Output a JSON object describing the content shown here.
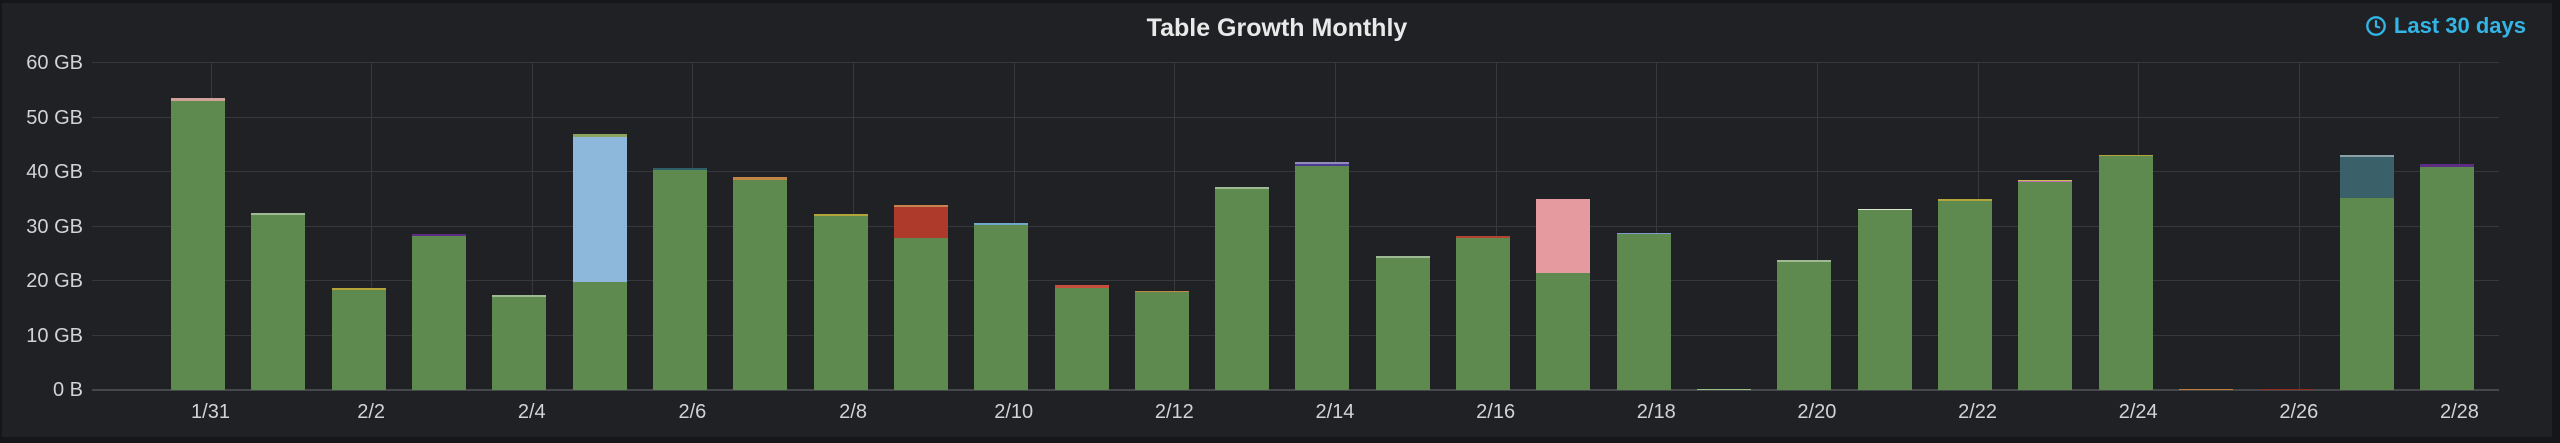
{
  "panel": {
    "title": "Table Growth Monthly"
  },
  "timepicker": {
    "label": "Last 30 days",
    "icon": "clock-icon",
    "color": "#33b5e5"
  },
  "chart_data": {
    "type": "bar",
    "stacked": true,
    "title": "Table Growth Monthly",
    "xlabel": "",
    "ylabel": "",
    "unit": "bytes",
    "ylim": [
      0,
      60
    ],
    "grid": true,
    "legend_position": "none",
    "y_ticks": [
      {
        "value": 0,
        "label": "0 B"
      },
      {
        "value": 10,
        "label": "10 GB"
      },
      {
        "value": 20,
        "label": "20 GB"
      },
      {
        "value": 30,
        "label": "30 GB"
      },
      {
        "value": 40,
        "label": "40 GB"
      },
      {
        "value": 50,
        "label": "50 GB"
      },
      {
        "value": 60,
        "label": "60 GB"
      }
    ],
    "x_tick_labels": [
      "1/31",
      "2/2",
      "2/4",
      "2/6",
      "2/8",
      "2/10",
      "2/12",
      "2/14",
      "2/16",
      "2/18",
      "2/20",
      "2/22",
      "2/24",
      "2/26",
      "2/28"
    ],
    "series_colors": {
      "green": "#5f8a4f",
      "sky_blue": "#8db8dc",
      "red": "#ae3a2c",
      "pink": "#e59aa0",
      "dark_teal": "#3a606a",
      "yellow": "#b3a33b",
      "orange": "#c08547",
      "purple": "#5c2d82",
      "indigo": "#4b3d8f",
      "salmon": "#c94f3d",
      "periwinkle": "#7e9cc9",
      "light_green": "#9cbf85",
      "olive": "#8da45f",
      "magenta": "#bd6cb3",
      "cream": "#d9e8cf",
      "dark_red": "#8e2d20",
      "tan_pink": "#cfa198"
    },
    "bars": [
      {
        "date": "1/31",
        "total_gb": 53.5,
        "segments": [
          {
            "color": "#5f8a4f",
            "gb": 53.0
          },
          {
            "color": "#cfa198",
            "gb": 0.5
          }
        ]
      },
      {
        "date": "2/1",
        "total_gb": 32.5,
        "segments": [
          {
            "color": "#5f8a4f",
            "gb": 32.5
          }
        ]
      },
      {
        "date": "2/2",
        "total_gb": 18.8,
        "segments": [
          {
            "color": "#5f8a4f",
            "gb": 18.4
          },
          {
            "color": "#b3a33b",
            "gb": 0.4
          }
        ]
      },
      {
        "date": "2/3",
        "total_gb": 28.7,
        "segments": [
          {
            "color": "#5f8a4f",
            "gb": 28.3
          },
          {
            "color": "#5c2d82",
            "gb": 0.4
          }
        ]
      },
      {
        "date": "2/4",
        "total_gb": 17.5,
        "segments": [
          {
            "color": "#5f8a4f",
            "gb": 17.5
          }
        ]
      },
      {
        "date": "2/5",
        "total_gb": 46.95,
        "segments": [
          {
            "color": "#5f8a4f",
            "gb": 19.9
          },
          {
            "color": "#8db8dc",
            "gb": 26.6
          },
          {
            "color": "#8da45f",
            "gb": 0.45
          }
        ]
      },
      {
        "date": "2/6",
        "total_gb": 40.7,
        "segments": [
          {
            "color": "#5f8a4f",
            "gb": 40.3
          },
          {
            "color": "#2f5f66",
            "gb": 0.4
          }
        ]
      },
      {
        "date": "2/7",
        "total_gb": 39.0,
        "segments": [
          {
            "color": "#5f8a4f",
            "gb": 38.6
          },
          {
            "color": "#c08547",
            "gb": 0.4
          }
        ]
      },
      {
        "date": "2/8",
        "total_gb": 32.3,
        "segments": [
          {
            "color": "#5f8a4f",
            "gb": 32.0
          },
          {
            "color": "#b3a33b",
            "gb": 0.3
          }
        ]
      },
      {
        "date": "2/9",
        "total_gb": 34.0,
        "segments": [
          {
            "color": "#5f8a4f",
            "gb": 27.9
          },
          {
            "color": "#ae3a2c",
            "gb": 5.7
          },
          {
            "color": "#c9834e",
            "gb": 0.4
          }
        ]
      },
      {
        "date": "2/10",
        "total_gb": 30.6,
        "segments": [
          {
            "color": "#5f8a4f",
            "gb": 30.3
          },
          {
            "color": "#6fa8c9",
            "gb": 0.3
          }
        ]
      },
      {
        "date": "2/11",
        "total_gb": 19.2,
        "segments": [
          {
            "color": "#5f8a4f",
            "gb": 18.7
          },
          {
            "color": "#c94f3d",
            "gb": 0.5
          }
        ]
      },
      {
        "date": "2/12",
        "total_gb": 18.2,
        "segments": [
          {
            "color": "#5f8a4f",
            "gb": 17.95
          },
          {
            "color": "#c08547",
            "gb": 0.25
          }
        ]
      },
      {
        "date": "2/13",
        "total_gb": 37.3,
        "segments": [
          {
            "color": "#5f8a4f",
            "gb": 37.3
          }
        ]
      },
      {
        "date": "2/14",
        "total_gb": 41.9,
        "segments": [
          {
            "color": "#5f8a4f",
            "gb": 41.1
          },
          {
            "color": "#4b3d8f",
            "gb": 0.8
          }
        ]
      },
      {
        "date": "2/15",
        "total_gb": 24.6,
        "segments": [
          {
            "color": "#5f8a4f",
            "gb": 24.6
          }
        ]
      },
      {
        "date": "2/16",
        "total_gb": 28.2,
        "segments": [
          {
            "color": "#5f8a4f",
            "gb": 27.85
          },
          {
            "color": "#b24430",
            "gb": 0.35
          }
        ]
      },
      {
        "date": "2/17",
        "total_gb": 35.0,
        "segments": [
          {
            "color": "#5f8a4f",
            "gb": 21.4
          },
          {
            "color": "#e59aa0",
            "gb": 13.6
          }
        ]
      },
      {
        "date": "2/18",
        "total_gb": 28.9,
        "segments": [
          {
            "color": "#5f8a4f",
            "gb": 28.6
          },
          {
            "color": "#7e9cc9",
            "gb": 0.3
          }
        ]
      },
      {
        "date": "2/19",
        "total_gb": 0.25,
        "segments": [
          {
            "color": "#9cbf85",
            "gb": 0.25
          }
        ]
      },
      {
        "date": "2/20",
        "total_gb": 23.8,
        "segments": [
          {
            "color": "#5f8a4f",
            "gb": 23.8
          }
        ]
      },
      {
        "date": "2/21",
        "total_gb": 33.2,
        "segments": [
          {
            "color": "#5f8a4f",
            "gb": 32.95
          },
          {
            "color": "#d9e8cf",
            "gb": 0.25
          }
        ]
      },
      {
        "date": "2/22",
        "total_gb": 35.0,
        "segments": [
          {
            "color": "#5f8a4f",
            "gb": 34.75
          },
          {
            "color": "#b3a33b",
            "gb": 0.25
          }
        ]
      },
      {
        "date": "2/23",
        "total_gb": 38.5,
        "segments": [
          {
            "color": "#5f8a4f",
            "gb": 38.1
          },
          {
            "color": "#bd6cb3",
            "gb": 0.2
          },
          {
            "color": "#cbbf53",
            "gb": 0.2
          }
        ]
      },
      {
        "date": "2/24",
        "total_gb": 43.2,
        "segments": [
          {
            "color": "#5f8a4f",
            "gb": 42.9
          },
          {
            "color": "#b3a33b",
            "gb": 0.3
          }
        ]
      },
      {
        "date": "2/25",
        "total_gb": 0.25,
        "segments": [
          {
            "color": "#bf7d3c",
            "gb": 0.25
          }
        ]
      },
      {
        "date": "2/26",
        "total_gb": 0.25,
        "segments": [
          {
            "color": "#8e2d20",
            "gb": 0.25
          }
        ]
      },
      {
        "date": "2/27",
        "total_gb": 43.2,
        "segments": [
          {
            "color": "#5f8a4f",
            "gb": 35.2
          },
          {
            "color": "#3a606a",
            "gb": 8.0
          }
        ]
      },
      {
        "date": "2/28",
        "total_gb": 41.4,
        "segments": [
          {
            "color": "#5f8a4f",
            "gb": 41.0
          },
          {
            "color": "#5c2d82",
            "gb": 0.4
          }
        ]
      }
    ]
  }
}
